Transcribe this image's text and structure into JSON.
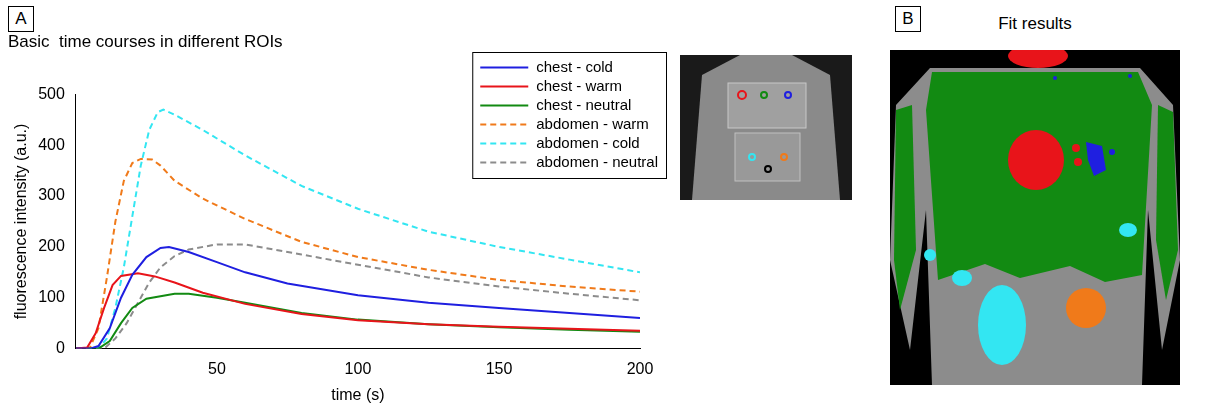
{
  "chart_data": {
    "type": "line",
    "panel": "A",
    "title": "Basic  time courses in different ROIs",
    "xlabel": "time (s)",
    "ylabel": "fluorescence intensity (a.u.)",
    "xlim": [
      0,
      200
    ],
    "xticks": [
      50,
      100,
      150,
      200
    ],
    "ylim": [
      0,
      500
    ],
    "yticks": [
      0,
      100,
      200,
      300,
      400,
      500
    ],
    "grid": false,
    "legend": "top-right",
    "series": [
      {
        "name": "chest - cold",
        "color": "#1f1fe0",
        "line_style": "solid",
        "x": [
          0,
          5,
          8,
          12,
          16,
          20,
          25,
          30,
          33,
          40,
          50,
          60,
          75,
          100,
          125,
          150,
          175,
          200
        ],
        "values": [
          0,
          0,
          5,
          40,
          100,
          145,
          180,
          198,
          200,
          190,
          170,
          150,
          128,
          105,
          90,
          80,
          70,
          60
        ]
      },
      {
        "name": "chest - warm",
        "color": "#e8141a",
        "line_style": "solid",
        "x": [
          0,
          4,
          7,
          10,
          13,
          16,
          22,
          28,
          35,
          45,
          60,
          80,
          100,
          125,
          150,
          175,
          200
        ],
        "values": [
          0,
          2,
          30,
          80,
          125,
          143,
          148,
          142,
          130,
          110,
          88,
          68,
          56,
          48,
          43,
          39,
          35
        ]
      },
      {
        "name": "chest - neutral",
        "color": "#128a12",
        "line_style": "solid",
        "x": [
          0,
          8,
          12,
          16,
          20,
          25,
          35,
          40,
          50,
          60,
          80,
          100,
          125,
          150,
          175,
          200
        ],
        "values": [
          0,
          0,
          15,
          50,
          80,
          98,
          108,
          108,
          100,
          90,
          70,
          57,
          48,
          42,
          37,
          33
        ]
      },
      {
        "name": "abdomen - warm",
        "color": "#f07a1a",
        "line_style": "dashed",
        "x": [
          0,
          5,
          8,
          11,
          14,
          17,
          20,
          23,
          27,
          30,
          35,
          45,
          60,
          80,
          100,
          125,
          150,
          175,
          200
        ],
        "values": [
          0,
          2,
          40,
          140,
          250,
          330,
          365,
          373,
          372,
          360,
          330,
          295,
          255,
          210,
          180,
          155,
          135,
          122,
          112
        ]
      },
      {
        "name": "abdomen - cold",
        "color": "#33e6f2",
        "line_style": "dashed",
        "x": [
          0,
          8,
          11,
          14,
          17,
          20,
          23,
          26,
          29,
          31,
          35,
          45,
          60,
          80,
          100,
          125,
          150,
          175,
          200
        ],
        "values": [
          0,
          0,
          20,
          80,
          160,
          260,
          360,
          430,
          465,
          470,
          460,
          430,
          380,
          320,
          275,
          230,
          200,
          175,
          150
        ]
      },
      {
        "name": "abdomen - neutral",
        "color": "#8c8c8c",
        "line_style": "dashed",
        "x": [
          0,
          10,
          14,
          18,
          22,
          26,
          30,
          35,
          40,
          50,
          60,
          70,
          80,
          100,
          125,
          150,
          175,
          200
        ],
        "values": [
          0,
          0,
          20,
          50,
          90,
          130,
          160,
          182,
          195,
          205,
          205,
          195,
          185,
          165,
          140,
          122,
          108,
          95
        ]
      }
    ]
  },
  "panel_b": {
    "panel": "B",
    "title": "Fit results"
  }
}
